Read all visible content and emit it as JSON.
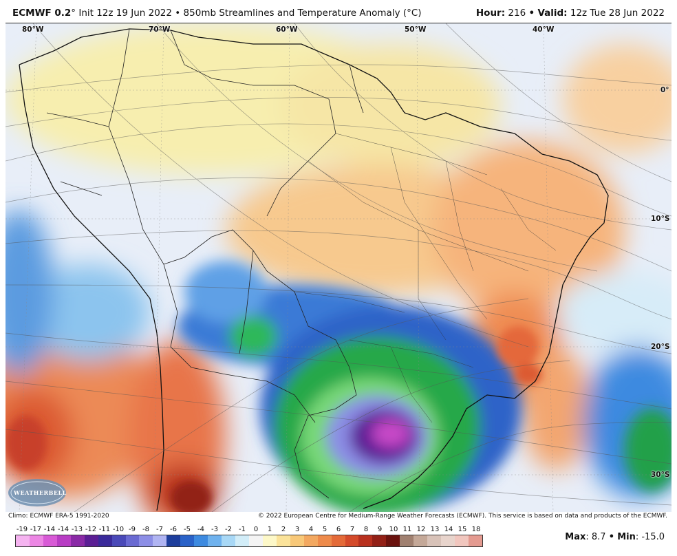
{
  "header": {
    "model": "ECMWF 0.2",
    "deg": "°",
    "init": "Init 12z 19 Jun 2022",
    "bullet": "•",
    "product": "850mb Streamlines and Temperature Anomaly (°C)",
    "hour_label": "Hour:",
    "hour_value": "216",
    "valid_label": "Valid:",
    "valid_value": "12z Tue 28 Jun 2022"
  },
  "map": {
    "lon_labels": [
      "80°W",
      "70°W",
      "60°W",
      "50°W",
      "40°W"
    ],
    "lat_labels": [
      "0°",
      "10°S",
      "20°S",
      "30°S"
    ]
  },
  "logo": {
    "text": "WEATHERBELL"
  },
  "footer": {
    "climo": "Climo: ECMWF ERA-5 1991-2020",
    "copyright": "© 2022 European Centre for Medium-Range Weather Forecasts (ECMWF). This service is based on data and products of the ECMWF."
  },
  "colorbar": {
    "ticks": [
      "-19",
      "-17",
      "-14",
      "-14",
      "-13",
      "-12",
      "-11",
      "-10",
      "-9",
      "-8",
      "-7",
      "-6",
      "-5",
      "-4",
      "-3",
      "-2",
      "-1",
      "0",
      "1",
      "2",
      "3",
      "4",
      "5",
      "6",
      "7",
      "8",
      "9",
      "10",
      "11",
      "12",
      "13",
      "14",
      "15",
      "18"
    ],
    "colors": [
      "#f5b3f0",
      "#ec86e4",
      "#d85ad6",
      "#b83cc4",
      "#8a2aa6",
      "#5b1e94",
      "#3a2a9a",
      "#4a49b8",
      "#6a6ad2",
      "#8c8ee6",
      "#b0b4f2",
      "#1e3e9c",
      "#2a62c8",
      "#3d8ae0",
      "#6fb2ee",
      "#a8d8f6",
      "#d2edf8",
      "#f4f4f4",
      "#fdf8c8",
      "#fbe39a",
      "#f8c878",
      "#f3a860",
      "#ee8a4a",
      "#e46a38",
      "#d44a2a",
      "#b8301e",
      "#922016",
      "#6a120e",
      "#a08070",
      "#c4a898",
      "#d8c2b8",
      "#e8d4cc",
      "#f1c6be",
      "#e49a90"
    ]
  },
  "stats": {
    "max_label": "Max",
    "max_value": "8.7",
    "min_label": "Min",
    "min_value": "-15.0"
  }
}
